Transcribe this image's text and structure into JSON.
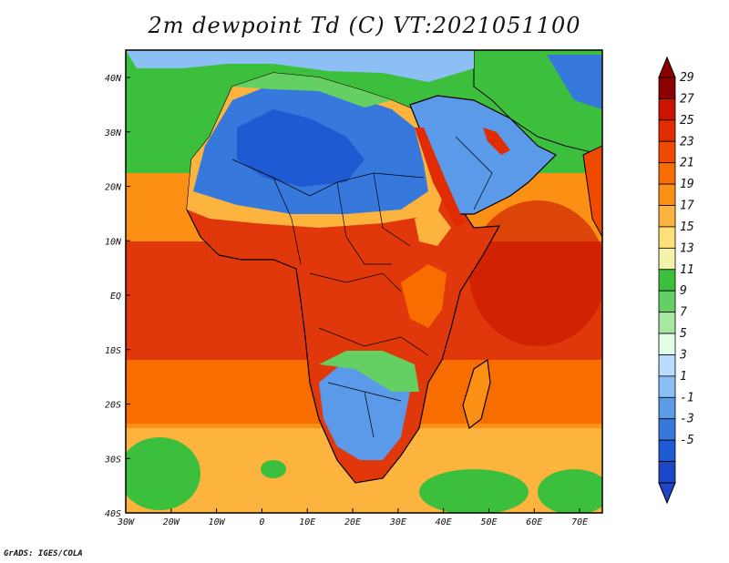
{
  "title": "2m dewpoint Td (C) VT:2021051100",
  "credit": "GrADS: IGES/COLA",
  "map": {
    "lon_labels": [
      "30W",
      "20W",
      "10W",
      "0",
      "10E",
      "20E",
      "30E",
      "40E",
      "50E",
      "60E",
      "70E"
    ],
    "lat_labels": [
      "40N",
      "30N",
      "20N",
      "10N",
      "EQ",
      "10S",
      "20S",
      "30S",
      "40S"
    ]
  },
  "colorbar": {
    "levels": [
      "29",
      "27",
      "25",
      "23",
      "21",
      "19",
      "17",
      "15",
      "13",
      "11",
      "9",
      "7",
      "5",
      "3",
      "1",
      "-1",
      "-3",
      "-5"
    ],
    "colors": [
      "#8b0000",
      "#c81400",
      "#e02c00",
      "#f04a00",
      "#f76d00",
      "#fb9015",
      "#fcb43e",
      "#fde07a",
      "#f4f4a8",
      "#3cbf3c",
      "#64d064",
      "#a7e8a0",
      "#e1ffe6",
      "#b9dcff",
      "#8cc0f5",
      "#5a9ae8",
      "#3778dc",
      "#1e5ad2",
      "#1e46c8"
    ],
    "top_color": "#8b0000",
    "bottom_color": "#1e46c8"
  },
  "colors": {
    "ocean_n": "#3cbf3c",
    "ocean_trop": "#e0380a",
    "ocean_s": "#fb9015",
    "sahara": "#3778dc",
    "sahel": "#fcb43e",
    "arabia": "#5a9ae8",
    "gulf": "#e02c00",
    "kalahari": "#5a9ae8",
    "congo": "#e0380a",
    "coast": "#000000"
  }
}
